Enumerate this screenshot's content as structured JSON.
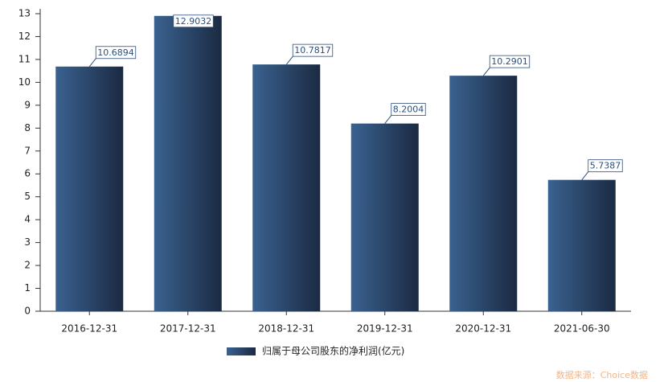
{
  "chart_data": {
    "type": "bar",
    "categories": [
      "2016-12-31",
      "2017-12-31",
      "2018-12-31",
      "2019-12-31",
      "2020-12-31",
      "2021-06-30"
    ],
    "series": [
      {
        "name": "归属于母公司股东的净利润(亿元)",
        "color": "#2f4f7a",
        "values": [
          10.6894,
          12.9032,
          10.7817,
          8.2004,
          10.2901,
          5.7387
        ]
      }
    ],
    "ylim": [
      0,
      13
    ],
    "yticks": [
      0,
      1,
      2,
      3,
      4,
      5,
      6,
      7,
      8,
      9,
      10,
      11,
      12,
      13
    ],
    "source": "数据来源：Choice数据"
  }
}
